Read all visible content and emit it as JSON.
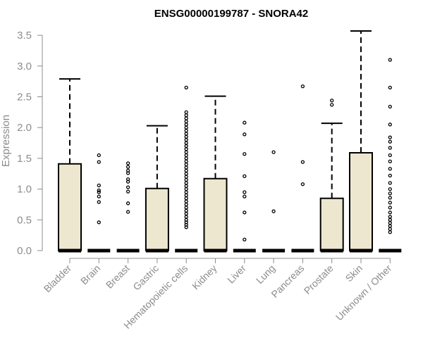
{
  "chart_data": {
    "type": "boxplot",
    "title": "ENSG00000199787 - SNORA42",
    "xlabel": "",
    "ylabel": "Expression",
    "ylim": [
      0,
      3.5
    ],
    "yticks": [
      "0.0",
      "0.5",
      "1.0",
      "1.5",
      "2.0",
      "2.5",
      "3.0",
      "3.5"
    ],
    "grid": false,
    "box_fill": "#ede7cf",
    "box_stroke": "#000000",
    "categories": [
      {
        "name": "Bladder",
        "q1": 0,
        "median": 0,
        "q3": 1.41,
        "whisker_low": 0,
        "whisker_high": 2.79,
        "outliers": []
      },
      {
        "name": "Brain",
        "q1": 0,
        "median": 0,
        "q3": 0,
        "whisker_low": 0,
        "whisker_high": 0,
        "outliers": [
          0.46,
          0.79,
          0.88,
          0.95,
          0.98,
          1.06,
          1.44,
          1.55
        ]
      },
      {
        "name": "Breast",
        "q1": 0,
        "median": 0,
        "q3": 0,
        "whisker_low": 0,
        "whisker_high": 0,
        "outliers": [
          0.63,
          0.77,
          0.96,
          1.03,
          1.12,
          1.16,
          1.26,
          1.3,
          1.36,
          1.42
        ]
      },
      {
        "name": "Gastric",
        "q1": 0,
        "median": 0,
        "q3": 1.01,
        "whisker_low": 0,
        "whisker_high": 2.03,
        "outliers": []
      },
      {
        "name": "Hematopoietic cells",
        "q1": 0,
        "median": 0,
        "q3": 0,
        "whisker_low": 0,
        "whisker_high": 0,
        "outliers": [
          0.38,
          0.42,
          0.46,
          0.5,
          0.55,
          0.6,
          0.65,
          0.7,
          0.75,
          0.8,
          0.85,
          0.9,
          0.95,
          1.0,
          1.05,
          1.1,
          1.15,
          1.2,
          1.25,
          1.3,
          1.35,
          1.4,
          1.45,
          1.5,
          1.55,
          1.6,
          1.65,
          1.7,
          1.75,
          1.8,
          1.85,
          1.9,
          1.95,
          2.0,
          2.05,
          2.1,
          2.15,
          2.2,
          2.25,
          2.65
        ]
      },
      {
        "name": "Kidney",
        "q1": 0,
        "median": 0,
        "q3": 1.17,
        "whisker_low": 0,
        "whisker_high": 2.51,
        "outliers": []
      },
      {
        "name": "Liver",
        "q1": 0,
        "median": 0,
        "q3": 0,
        "whisker_low": 0,
        "whisker_high": 0,
        "outliers": [
          0.18,
          0.62,
          0.88,
          0.95,
          1.21,
          1.57,
          1.89,
          2.08
        ]
      },
      {
        "name": "Lung",
        "q1": 0,
        "median": 0,
        "q3": 0,
        "whisker_low": 0,
        "whisker_high": 0,
        "outliers": [
          0.64,
          1.6
        ]
      },
      {
        "name": "Pancreas",
        "q1": 0,
        "median": 0,
        "q3": 0,
        "whisker_low": 0,
        "whisker_high": 0,
        "outliers": [
          1.08,
          1.44,
          2.67
        ]
      },
      {
        "name": "Prostate",
        "q1": 0,
        "median": 0,
        "q3": 0.85,
        "whisker_low": 0,
        "whisker_high": 2.07,
        "outliers": [
          2.37,
          2.44
        ]
      },
      {
        "name": "Skin",
        "q1": 0,
        "median": 0,
        "q3": 1.59,
        "whisker_low": 0,
        "whisker_high": 3.57,
        "outliers": []
      },
      {
        "name": "Unknown / Other",
        "q1": 0,
        "median": 0,
        "q3": 0,
        "whisker_low": 0,
        "whisker_high": 0,
        "outliers": [
          0.3,
          0.35,
          0.4,
          0.45,
          0.5,
          0.55,
          0.62,
          0.7,
          0.78,
          0.86,
          0.93,
          1.0,
          1.1,
          1.22,
          1.33,
          1.45,
          1.55,
          1.67,
          1.77,
          1.84,
          2.05,
          2.34,
          2.65,
          3.1
        ]
      }
    ]
  }
}
